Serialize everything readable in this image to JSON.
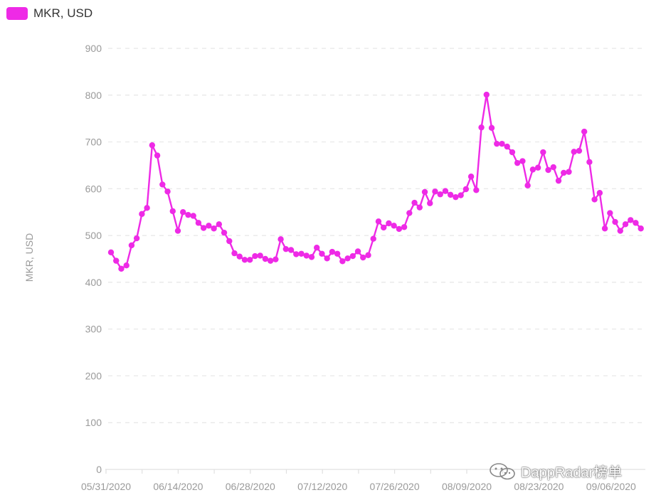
{
  "legend": {
    "label": "MKR, USD"
  },
  "watermark": {
    "text": "DappRadar榜单",
    "icon": "wechat-icon"
  },
  "colors": {
    "series": "#ee2ae6",
    "grid": "#e6e6e6",
    "tick_text": "#9a9a9a",
    "axis": "#e0e0e0"
  },
  "chart_data": {
    "type": "line",
    "title": "",
    "xlabel": "",
    "ylabel": "MKR, USD",
    "ylim": [
      0,
      900
    ],
    "yticks": [
      0,
      100,
      200,
      300,
      400,
      500,
      600,
      700,
      800,
      900
    ],
    "grid": true,
    "legend_position": "top-left",
    "x_tick_labels": [
      "05/31/2020",
      "06/14/2020",
      "06/28/2020",
      "07/12/2020",
      "07/26/2020",
      "08/09/2020",
      "08/23/2020",
      "09/06/2020"
    ],
    "x_start": "05/31/2020",
    "series": [
      {
        "name": "MKR, USD",
        "color": "#ee2ae6",
        "values": [
          464,
          446,
          429,
          436,
          479,
          494,
          546,
          559,
          693,
          671,
          609,
          594,
          552,
          510,
          550,
          544,
          542,
          527,
          516,
          521,
          515,
          524,
          506,
          488,
          462,
          455,
          448,
          448,
          456,
          457,
          450,
          446,
          449,
          492,
          471,
          469,
          460,
          461,
          457,
          454,
          474,
          461,
          451,
          465,
          461,
          445,
          451,
          456,
          466,
          453,
          458,
          493,
          530,
          517,
          526,
          521,
          514,
          518,
          548,
          570,
          560,
          593,
          569,
          594,
          588,
          595,
          587,
          582,
          586,
          599,
          626,
          597,
          731,
          801,
          730,
          696,
          696,
          690,
          678,
          655,
          659,
          607,
          641,
          645,
          678,
          640,
          646,
          617,
          634,
          636,
          679,
          681,
          722,
          657,
          577,
          591,
          515,
          548,
          529,
          510,
          524,
          533,
          527,
          515
        ]
      }
    ]
  }
}
